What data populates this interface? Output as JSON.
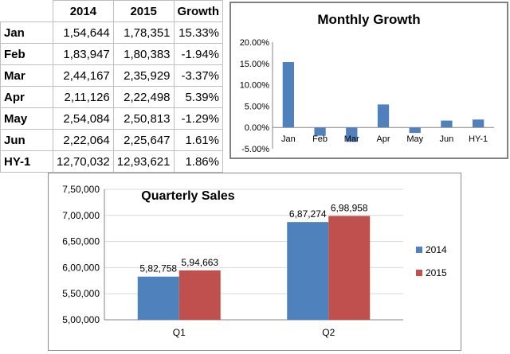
{
  "table": {
    "headers": [
      "",
      "2014",
      "2015",
      "Growth"
    ],
    "rows": [
      {
        "month": "Jan",
        "y2014": "1,54,644",
        "y2015": "1,78,351",
        "growth": "15.33%"
      },
      {
        "month": "Feb",
        "y2014": "1,83,947",
        "y2015": "1,80,383",
        "growth": "-1.94%"
      },
      {
        "month": "Mar",
        "y2014": "2,44,167",
        "y2015": "2,35,929",
        "growth": "-3.37%"
      },
      {
        "month": "Apr",
        "y2014": "2,11,126",
        "y2015": "2,22,498",
        "growth": "5.39%"
      },
      {
        "month": "May",
        "y2014": "2,54,084",
        "y2015": "2,50,813",
        "growth": "-1.29%"
      },
      {
        "month": "Jun",
        "y2014": "2,22,064",
        "y2015": "2,25,647",
        "growth": "1.61%"
      },
      {
        "month": "HY-1",
        "y2014": "12,70,032",
        "y2015": "12,93,621",
        "growth": "1.86%"
      }
    ]
  },
  "chart_data": [
    {
      "type": "bar",
      "title": "Monthly Growth",
      "categories": [
        "Jan",
        "Feb",
        "Mar",
        "Apr",
        "May",
        "Jun",
        "HY-1"
      ],
      "values": [
        15.33,
        -1.94,
        -3.37,
        5.39,
        -1.29,
        1.61,
        1.86
      ],
      "ylim": [
        -5,
        20
      ],
      "yticks": [
        "-5.00%",
        "0.00%",
        "5.00%",
        "10.00%",
        "15.00%",
        "20.00%"
      ],
      "ytick_values": [
        -5,
        0,
        5,
        10,
        15,
        20
      ],
      "colors": {
        "bar": "#4f81bd"
      }
    },
    {
      "type": "bar",
      "title": "Quarterly Sales",
      "categories": [
        "Q1",
        "Q2"
      ],
      "series": [
        {
          "name": "2014",
          "values": [
            582758,
            687274
          ],
          "labels": [
            "5,82,758",
            "6,87,274"
          ],
          "color": "#4f81bd"
        },
        {
          "name": "2015",
          "values": [
            594663,
            698958
          ],
          "labels": [
            "5,94,663",
            "6,98,958"
          ],
          "color": "#c0504d"
        }
      ],
      "ylim": [
        500000,
        750000
      ],
      "yticks": [
        "5,00,000",
        "5,50,000",
        "6,00,000",
        "6,50,000",
        "7,00,000",
        "7,50,000"
      ],
      "ytick_values": [
        500000,
        550000,
        600000,
        650000,
        700000,
        750000
      ],
      "legend": "right",
      "grid": true
    }
  ]
}
